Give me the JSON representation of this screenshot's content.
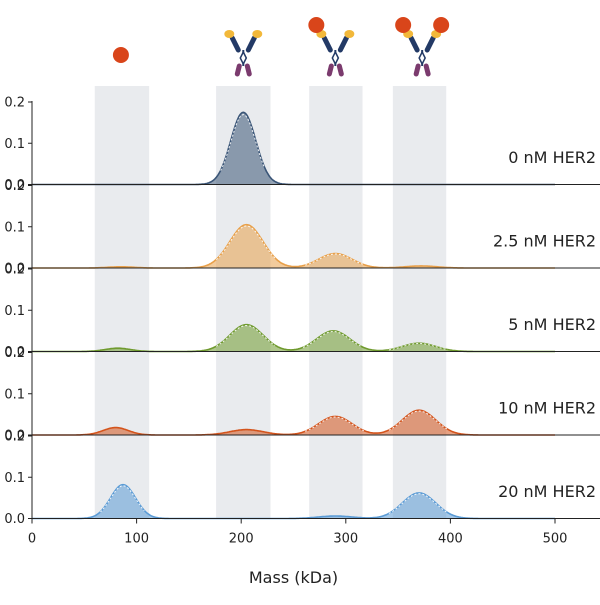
{
  "chart_data": {
    "type": "area",
    "title": "",
    "xlabel": "Mass (kDa)",
    "ylabel": "",
    "xlim": [
      0,
      500
    ],
    "ylim": [
      0,
      0.2
    ],
    "x_ticks": [
      "0",
      "100",
      "200",
      "300",
      "400",
      "500"
    ],
    "y_ticks": [
      "0.0",
      "0.1",
      "0.2"
    ],
    "grid": false,
    "highlight_bands": [
      [
        60,
        112
      ],
      [
        176,
        228
      ],
      [
        265,
        316
      ],
      [
        345,
        396
      ]
    ],
    "icons": [
      {
        "name": "her2-antigen",
        "x": 85,
        "count": 1
      },
      {
        "name": "antibody",
        "x": 202,
        "count": 0
      },
      {
        "name": "antibody-with-antigen",
        "x": 290,
        "count": 1
      },
      {
        "name": "antibody-with-antigen",
        "x": 373,
        "count": 2
      }
    ],
    "panels": [
      {
        "label": "0 nM HER2",
        "color": "#3a5577",
        "peaks": [
          {
            "mass": 202,
            "height": 0.175,
            "width": 12
          }
        ],
        "ymax": 0.2
      },
      {
        "label": "2.5 nM HER2",
        "color": "#e8a04a",
        "peaks": [
          {
            "mass": 85,
            "height": 0.003,
            "width": 12
          },
          {
            "mass": 205,
            "height": 0.105,
            "width": 16
          },
          {
            "mass": 290,
            "height": 0.035,
            "width": 16
          },
          {
            "mass": 372,
            "height": 0.005,
            "width": 15
          }
        ],
        "ymax": 0.2
      },
      {
        "label": "5 nM HER2",
        "color": "#6f9a2e",
        "peaks": [
          {
            "mass": 82,
            "height": 0.008,
            "width": 12
          },
          {
            "mass": 205,
            "height": 0.065,
            "width": 16
          },
          {
            "mass": 288,
            "height": 0.05,
            "width": 16
          },
          {
            "mass": 370,
            "height": 0.02,
            "width": 16
          }
        ],
        "ymax": 0.2
      },
      {
        "label": "10 nM HER2",
        "color": "#d4541c",
        "peaks": [
          {
            "mass": 80,
            "height": 0.018,
            "width": 12
          },
          {
            "mass": 205,
            "height": 0.013,
            "width": 16
          },
          {
            "mass": 290,
            "height": 0.045,
            "width": 16
          },
          {
            "mass": 370,
            "height": 0.06,
            "width": 16
          }
        ],
        "ymax": 0.2
      },
      {
        "label": "20 nM HER2",
        "color": "#5b9bd5",
        "peaks": [
          {
            "mass": 87,
            "height": 0.082,
            "width": 12
          },
          {
            "mass": 290,
            "height": 0.006,
            "width": 16
          },
          {
            "mass": 370,
            "height": 0.062,
            "width": 16
          }
        ],
        "ymax": 0.2
      }
    ]
  }
}
